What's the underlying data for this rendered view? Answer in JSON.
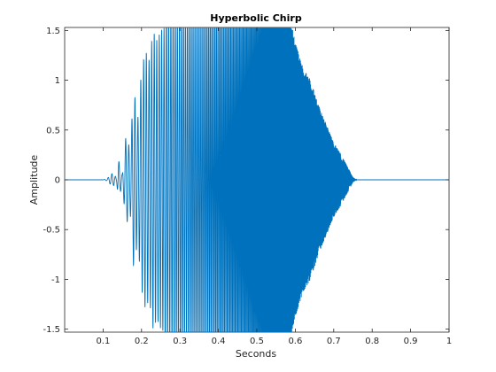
{
  "chart_data": {
    "type": "line",
    "title": "Hyperbolic Chirp",
    "xlabel": "Seconds",
    "ylabel": "Amplitude",
    "xlim": [
      0,
      1
    ],
    "ylim": [
      -1.53,
      1.53
    ],
    "xticks": [
      0.1,
      0.2,
      0.3,
      0.4,
      0.5,
      0.6,
      0.7,
      0.8,
      0.9,
      1
    ],
    "xtick_labels": [
      "0.1",
      "0.2",
      "0.3",
      "0.4",
      "0.5",
      "0.6",
      "0.7",
      "0.8",
      "0.9",
      "1"
    ],
    "yticks": [
      1.5,
      1,
      0.5,
      0,
      -0.5,
      -1,
      -1.5
    ],
    "ytick_labels": [
      "1.5",
      "1",
      "0.5",
      "0",
      "-0.5",
      "-1",
      "-1.5"
    ],
    "grid": false,
    "line_color": "#0072bd",
    "series": [
      {
        "description_values": "approximate samples (x in seconds, y amplitude)",
        "x": [
          0.0,
          0.1,
          0.11,
          0.125,
          0.135,
          0.14,
          0.15,
          0.16,
          0.17,
          0.18,
          0.19,
          0.2,
          0.21,
          0.22,
          0.23,
          0.24,
          0.25,
          0.26,
          0.27,
          0.28,
          0.3,
          0.32,
          0.34,
          0.36,
          0.38,
          0.4,
          0.42,
          0.44,
          0.46,
          0.48,
          0.5,
          0.52,
          0.54,
          0.56,
          0.58,
          0.6,
          0.62,
          0.64,
          0.66,
          0.68,
          0.7,
          0.72,
          0.74,
          0.75,
          0.76,
          1.0
        ],
        "y": [
          0.0,
          0.0,
          -0.01,
          -0.07,
          0.02,
          -0.2,
          0.05,
          -0.47,
          0.3,
          0.92,
          -0.6,
          1.1,
          -1.3,
          1.2,
          -1.5,
          1.4,
          -1.5,
          1.53,
          -1.53,
          1.53,
          -1.53,
          1.53,
          -1.53,
          1.53,
          -1.53,
          1.53,
          -1.53,
          1.53,
          -1.53,
          1.53,
          -1.53,
          1.53,
          -1.53,
          1.53,
          -1.4,
          1.1,
          -0.9,
          0.8,
          -0.6,
          0.45,
          -0.3,
          0.2,
          -0.08,
          0.02,
          0.0,
          0.0
        ]
      }
    ]
  }
}
